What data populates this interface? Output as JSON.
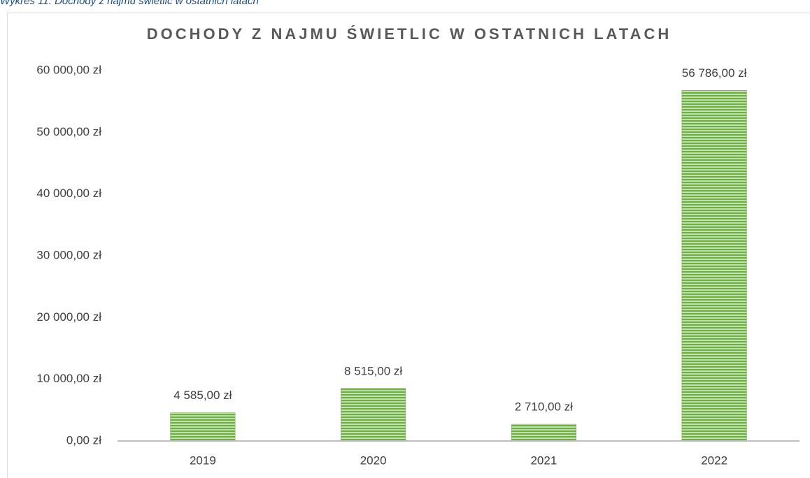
{
  "caption": "Wykres 11. Dochody z najmu świetlic w ostatnich latach",
  "chart_data": {
    "type": "bar",
    "title": "DOCHODY Z NAJMU ŚWIETLIC W OSTATNICH LATACH",
    "categories": [
      "2019",
      "2020",
      "2021",
      "2022"
    ],
    "values": [
      4585,
      8515,
      2710,
      56786
    ],
    "value_labels": [
      "4 585,00 zł",
      "8 515,00 zł",
      "2 710,00 zł",
      "56 786,00 zł"
    ],
    "color": "#70ad47",
    "ylim": [
      0,
      60000
    ],
    "yticks": [
      {
        "value": 0,
        "label": "0,00 zł"
      },
      {
        "value": 10000,
        "label": "10 000,00 zł"
      },
      {
        "value": 20000,
        "label": "20 000,00 zł"
      },
      {
        "value": 30000,
        "label": "30 000,00 zł"
      },
      {
        "value": 40000,
        "label": "40 000,00 zł"
      },
      {
        "value": 50000,
        "label": "50 000,00 zł"
      },
      {
        "value": 60000,
        "label": "60 000,00 zł"
      }
    ],
    "grid": false
  }
}
